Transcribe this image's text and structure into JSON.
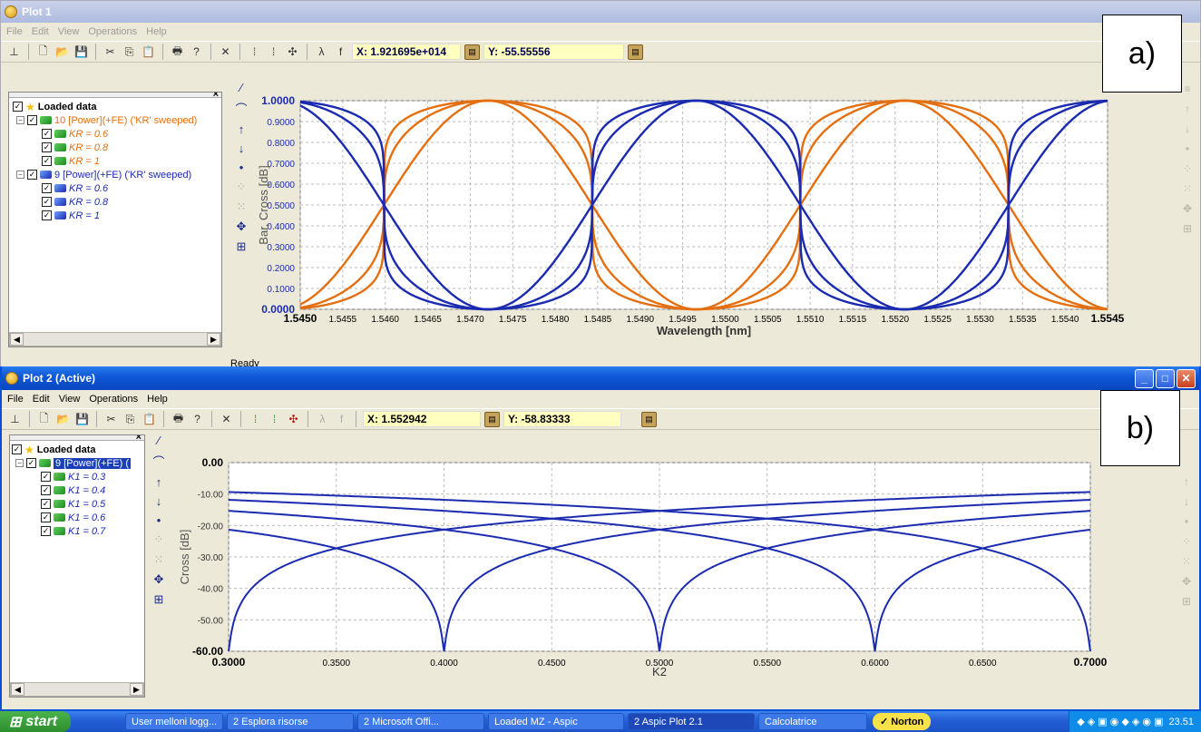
{
  "plot1": {
    "title": "Plot 1",
    "menu": [
      "File",
      "Edit",
      "View",
      "Operations",
      "Help"
    ],
    "x_coord": "X: 1.921695e+014",
    "y_coord": "Y: -55.55556",
    "status": "Ready",
    "panel_label": "a)",
    "tree": {
      "root": "Loaded data",
      "groups": [
        {
          "label": "10 [Power](+FE) ('KR' sweeped)",
          "color": "#e46f10",
          "children": [
            "KR = 0.6",
            "KR = 0.8",
            "KR = 1"
          ]
        },
        {
          "label": "9 [Power](+FE) ('KR' sweeped)",
          "color": "#1b2bb0",
          "children": [
            "KR = 0.6",
            "KR = 0.8",
            "KR = 1"
          ]
        }
      ]
    }
  },
  "plot2": {
    "title": "Plot 2 (Active)",
    "menu": [
      "File",
      "Edit",
      "View",
      "Operations",
      "Help"
    ],
    "x_coord": "X: 1.552942",
    "y_coord": "Y: -58.83333",
    "panel_label": "b)",
    "tree": {
      "root": "Loaded data",
      "groups": [
        {
          "label": "9 [Power](+FE) (",
          "color": "#1b2bb0",
          "children": [
            "K1 = 0.3",
            "K1 = 0.4",
            "K1 = 0.5",
            "K1 = 0.6",
            "K1 = 0.7"
          ]
        }
      ]
    }
  },
  "taskbar": {
    "start": "start",
    "tasks": [
      "User melloni logg...",
      "2 Esplora risorse",
      "2 Microsoft Offi...",
      "Loaded MZ - Aspic",
      "2 Aspic Plot 2.1",
      "Calcolatrice"
    ],
    "norton": "Norton",
    "clock": "23.51"
  },
  "chart_data": [
    {
      "type": "line",
      "xlabel": "Wavelength [nm]",
      "ylabel": "Bar, Cross [dB]",
      "xlim": [
        1.545,
        1.5545
      ],
      "ylim": [
        0,
        1
      ],
      "x_ticks": [
        "1.5450",
        "1.5455",
        "1.5460",
        "1.5465",
        "1.5470",
        "1.5475",
        "1.5480",
        "1.5485",
        "1.5490",
        "1.5495",
        "1.5500",
        "1.5505",
        "1.5510",
        "1.5515",
        "1.5520",
        "1.5525",
        "1.5530",
        "1.5535",
        "1.5540",
        "1.5545"
      ],
      "y_ticks": [
        "0.0000",
        "0.1000",
        "0.2000",
        "0.3000",
        "0.4000",
        "0.5000",
        "0.6000",
        "0.7000",
        "0.8000",
        "0.9000",
        "1.0000"
      ],
      "grid": true,
      "period_nm": 0.0049,
      "crossover_points_x": [
        1.54721,
        1.54966,
        1.55211,
        1.55456
      ],
      "series": [
        {
          "color": "#e46f10",
          "shape_exponents": [
            1,
            3,
            6
          ]
        },
        {
          "color": "#1b2bb0",
          "shape_exponents": [
            1,
            3,
            6
          ]
        }
      ]
    },
    {
      "type": "line",
      "xlabel": "K2",
      "ylabel": "Cross [dB]",
      "xlim": [
        0.3,
        0.7
      ],
      "ylim": [
        -60,
        0
      ],
      "x_ticks": [
        "0.3000",
        "0.3500",
        "0.4000",
        "0.4500",
        "0.5000",
        "0.5500",
        "0.6000",
        "0.6500",
        "0.7000"
      ],
      "y_ticks": [
        "0.00",
        "-10.00",
        "-20.00",
        "-30.00",
        "-40.00",
        "-50.00",
        "-60.00"
      ],
      "grid": true,
      "series": [
        {
          "k1": 0.3,
          "color": "#1b2bb0"
        },
        {
          "k1": 0.4,
          "color": "#1b2bb0"
        },
        {
          "k1": 0.5,
          "color": "#1b2bb0"
        },
        {
          "k1": 0.6,
          "color": "#1b2bb0"
        },
        {
          "k1": 0.7,
          "color": "#1b2bb0"
        }
      ],
      "notch_x": [
        0.3,
        0.4,
        0.5,
        0.6,
        0.7
      ]
    }
  ]
}
